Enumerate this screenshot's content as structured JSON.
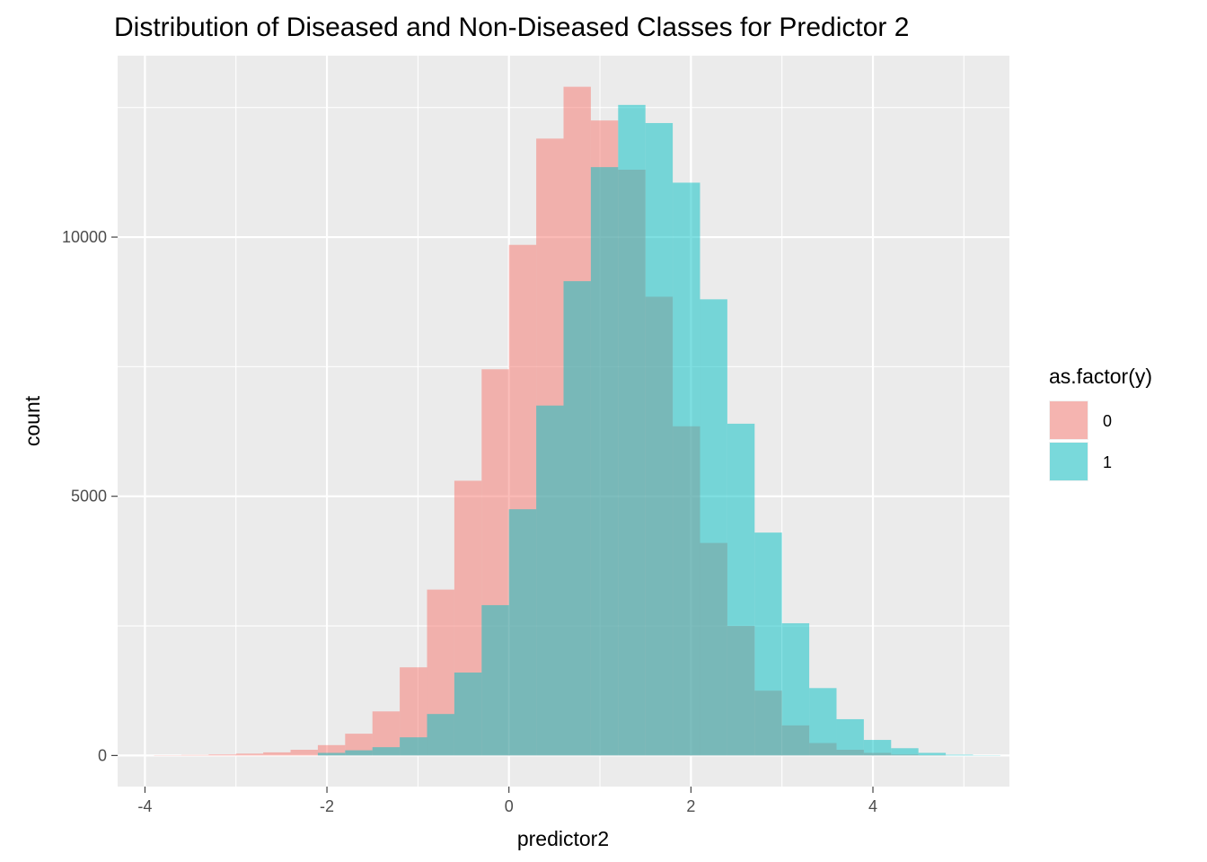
{
  "chart_data": {
    "type": "histogram",
    "title": "Distribution of Diseased and Non-Diseased Classes for Predictor 2",
    "xlabel": "predictor2",
    "ylabel": "count",
    "xlim": [
      -4.3,
      5.5
    ],
    "ylim": [
      -600,
      13500
    ],
    "x_ticks": [
      -4,
      -2,
      0,
      2,
      4
    ],
    "x_tick_labels": [
      "-4",
      "-2",
      "0",
      "2",
      "4"
    ],
    "y_ticks": [
      0,
      5000,
      10000
    ],
    "y_tick_labels": [
      "0",
      "5000",
      "10000"
    ],
    "grid": true,
    "legend": {
      "title": "as.factor(y)",
      "position": "right"
    },
    "bin_width": 0.3,
    "series": [
      {
        "name": "0",
        "color": "#F8766D",
        "bins": [
          {
            "x0": -3.9,
            "x1": -3.6,
            "count": 5
          },
          {
            "x0": -3.6,
            "x1": -3.3,
            "count": 10
          },
          {
            "x0": -3.3,
            "x1": -3.0,
            "count": 20
          },
          {
            "x0": -3.0,
            "x1": -2.7,
            "count": 35
          },
          {
            "x0": -2.7,
            "x1": -2.4,
            "count": 60
          },
          {
            "x0": -2.4,
            "x1": -2.1,
            "count": 110
          },
          {
            "x0": -2.1,
            "x1": -1.8,
            "count": 200
          },
          {
            "x0": -1.8,
            "x1": -1.5,
            "count": 420
          },
          {
            "x0": -1.5,
            "x1": -1.2,
            "count": 850
          },
          {
            "x0": -1.2,
            "x1": -0.9,
            "count": 1700
          },
          {
            "x0": -0.9,
            "x1": -0.6,
            "count": 3200
          },
          {
            "x0": -0.6,
            "x1": -0.3,
            "count": 5300
          },
          {
            "x0": -0.3,
            "x1": 0.0,
            "count": 7450
          },
          {
            "x0": 0.0,
            "x1": 0.3,
            "count": 9850
          },
          {
            "x0": 0.3,
            "x1": 0.6,
            "count": 11900
          },
          {
            "x0": 0.6,
            "x1": 0.9,
            "count": 12900
          },
          {
            "x0": 0.9,
            "x1": 1.2,
            "count": 12250
          },
          {
            "x0": 1.2,
            "x1": 1.5,
            "count": 11300
          },
          {
            "x0": 1.5,
            "x1": 1.8,
            "count": 8850
          },
          {
            "x0": 1.8,
            "x1": 2.1,
            "count": 6350
          },
          {
            "x0": 2.1,
            "x1": 2.4,
            "count": 4100
          },
          {
            "x0": 2.4,
            "x1": 2.7,
            "count": 2500
          },
          {
            "x0": 2.7,
            "x1": 3.0,
            "count": 1250
          },
          {
            "x0": 3.0,
            "x1": 3.3,
            "count": 580
          },
          {
            "x0": 3.3,
            "x1": 3.6,
            "count": 240
          },
          {
            "x0": 3.6,
            "x1": 3.9,
            "count": 110
          },
          {
            "x0": 3.9,
            "x1": 4.2,
            "count": 50
          },
          {
            "x0": 4.2,
            "x1": 4.5,
            "count": 20
          },
          {
            "x0": 4.5,
            "x1": 4.8,
            "count": 8
          }
        ]
      },
      {
        "name": "1",
        "color": "#00BFC4",
        "bins": [
          {
            "x0": -2.1,
            "x1": -1.8,
            "count": 50
          },
          {
            "x0": -1.8,
            "x1": -1.5,
            "count": 100
          },
          {
            "x0": -1.5,
            "x1": -1.2,
            "count": 160
          },
          {
            "x0": -1.2,
            "x1": -0.9,
            "count": 350
          },
          {
            "x0": -0.9,
            "x1": -0.6,
            "count": 800
          },
          {
            "x0": -0.6,
            "x1": -0.3,
            "count": 1600
          },
          {
            "x0": -0.3,
            "x1": 0.0,
            "count": 2900
          },
          {
            "x0": 0.0,
            "x1": 0.3,
            "count": 4750
          },
          {
            "x0": 0.3,
            "x1": 0.6,
            "count": 6750
          },
          {
            "x0": 0.6,
            "x1": 0.9,
            "count": 9150
          },
          {
            "x0": 0.9,
            "x1": 1.2,
            "count": 11350
          },
          {
            "x0": 1.2,
            "x1": 1.5,
            "count": 12550
          },
          {
            "x0": 1.5,
            "x1": 1.8,
            "count": 12200
          },
          {
            "x0": 1.8,
            "x1": 2.1,
            "count": 11050
          },
          {
            "x0": 2.1,
            "x1": 2.4,
            "count": 8800
          },
          {
            "x0": 2.4,
            "x1": 2.7,
            "count": 6400
          },
          {
            "x0": 2.7,
            "x1": 3.0,
            "count": 4300
          },
          {
            "x0": 3.0,
            "x1": 3.3,
            "count": 2550
          },
          {
            "x0": 3.3,
            "x1": 3.6,
            "count": 1300
          },
          {
            "x0": 3.6,
            "x1": 3.9,
            "count": 700
          },
          {
            "x0": 3.9,
            "x1": 4.2,
            "count": 300
          },
          {
            "x0": 4.2,
            "x1": 4.5,
            "count": 140
          },
          {
            "x0": 4.5,
            "x1": 4.8,
            "count": 50
          },
          {
            "x0": 4.8,
            "x1": 5.1,
            "count": 15
          },
          {
            "x0": 5.1,
            "x1": 5.4,
            "count": 5
          }
        ]
      }
    ]
  }
}
